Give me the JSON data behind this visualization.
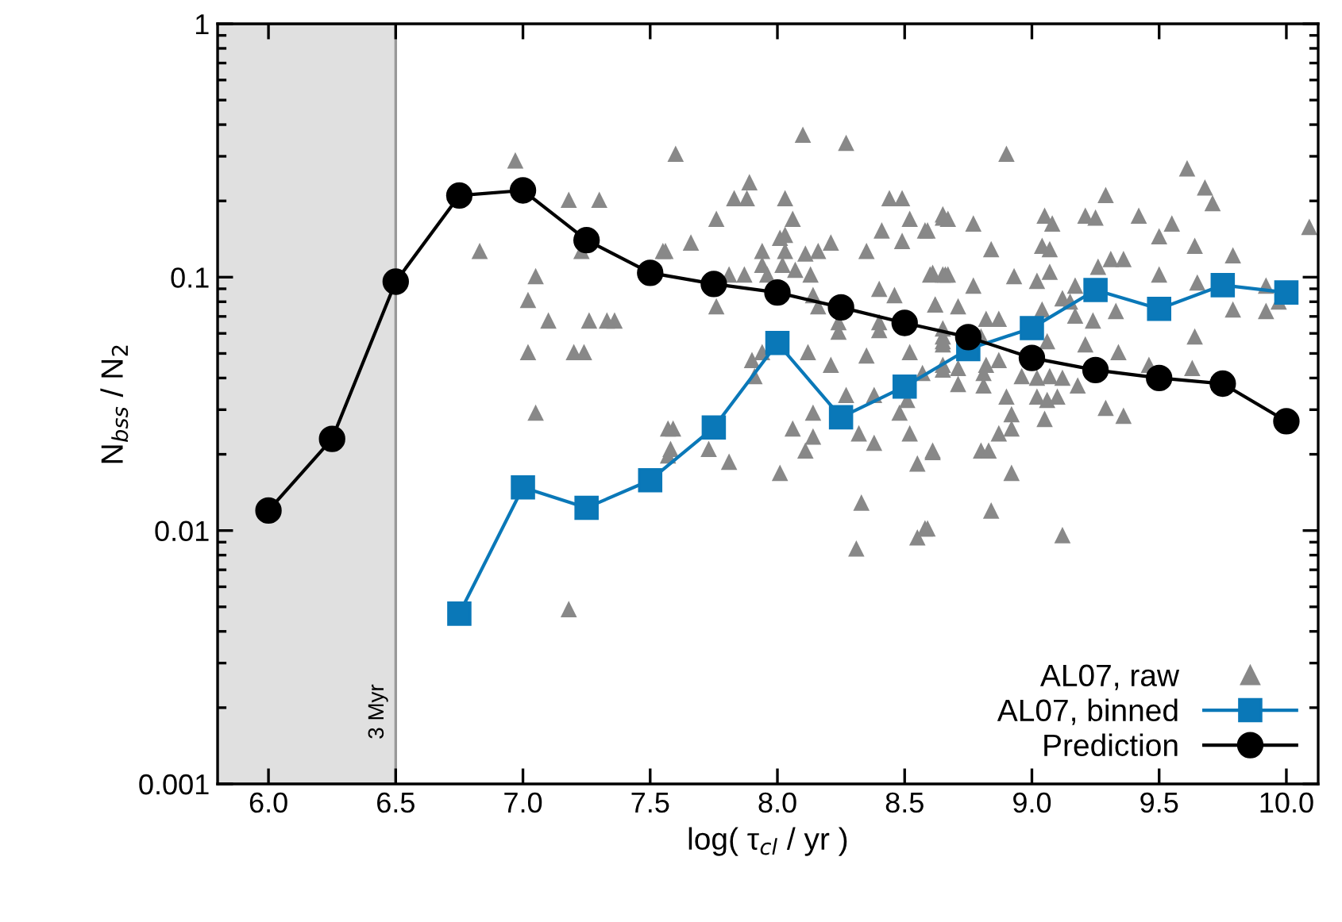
{
  "chart_data": {
    "type": "scatter",
    "xlabel": "log( τ$_{cl}$ / yr )",
    "ylabel": "N$_{bss}$ / N$_{2}$",
    "log": "y",
    "xlim": [
      5.8,
      10.125
    ],
    "ylim": [
      0.001,
      1
    ],
    "xticks": [
      {
        "value": 6,
        "label": "6.0"
      },
      {
        "value": 6.5,
        "label": "6.5"
      },
      {
        "value": 7,
        "label": "7.0"
      },
      {
        "value": 7.5,
        "label": "7.5"
      },
      {
        "value": 8,
        "label": "8.0"
      },
      {
        "value": 8.5,
        "label": "8.5"
      },
      {
        "value": 9,
        "label": "9.0"
      },
      {
        "value": 9.5,
        "label": "9.5"
      },
      {
        "value": 10,
        "label": "10.0"
      }
    ],
    "yticks": [
      0.001,
      0.01,
      0.1,
      1
    ],
    "grid": false,
    "legend": "bottom right",
    "bands": [
      {
        "axis": "x",
        "from": 5.8,
        "to": 6.5,
        "label": "3 Myr",
        "color": "#e0e0e0"
      }
    ],
    "series": [
      {
        "name": "AL07, raw",
        "marker": "triangle",
        "color": "#888888",
        "x": [
          6.97,
          6.83,
          7.18,
          7.3,
          7.23,
          7.55,
          7.05,
          7.02,
          7.1,
          7.26,
          7.33,
          7.36,
          7.02,
          7.2,
          7.24,
          7.05,
          7.18,
          7.57,
          7.57,
          8.1,
          8.27,
          7.6,
          7.89,
          7.83,
          7.88,
          8.03,
          8.44,
          8.49,
          7.76,
          8.06,
          8.52,
          8.41,
          8.58,
          8.65,
          7.66,
          7.56,
          8.03,
          8.01,
          7.94,
          8.03,
          8.11,
          8.16,
          8.21,
          8.35,
          8.49,
          7.94,
          8.02,
          8.07,
          7.81,
          7.87,
          7.96,
          8.13,
          8.6,
          8.66,
          7.76,
          8.4,
          8.46,
          8.14,
          8.16,
          8.62,
          8.24,
          8.4,
          8.24,
          8.4,
          8.65,
          8.65,
          7.9,
          7.94,
          7.91,
          8.12,
          8.21,
          8.35,
          8.52,
          8.65,
          8.57,
          8.27,
          8.38,
          8.51,
          8.48,
          7.59,
          8.06,
          8.14,
          8.14,
          8.32,
          8.38,
          8.52,
          7.58,
          7.73,
          8.11,
          7.81,
          8.55,
          8.61,
          8.01,
          8.33,
          8.58,
          8.55,
          8.31,
          8.9,
          9.61,
          9.68,
          9.71,
          9.29,
          8.65,
          8.67,
          8.77,
          8.59,
          9.05,
          9.08,
          9.21,
          9.25,
          9.42,
          9.55,
          9.5,
          10.09,
          8.84,
          9.04,
          9.07,
          9.64,
          9.79,
          9.26,
          9.31,
          9.36,
          8.61,
          8.65,
          8.67,
          8.93,
          9.07,
          9.02,
          8.77,
          9.17,
          9.5,
          9.65,
          9.92,
          9.12,
          9.15,
          8.62,
          8.71,
          9.33,
          9.79,
          9.92,
          9.97,
          8.82,
          8.87,
          9.04,
          9.17,
          9.24,
          8.65,
          8.65,
          8.8,
          9.06,
          9.64,
          9.21,
          9.34,
          8.71,
          8.82,
          8.87,
          8.65,
          8.81,
          8.81,
          8.71,
          8.96,
          9.02,
          9.07,
          9.12,
          9.18,
          9.46,
          9.63,
          9.02,
          9.06,
          9.1,
          8.9,
          8.92,
          9.05,
          9.29,
          9.36,
          8.87,
          8.92,
          8.61,
          8.8,
          8.83,
          8.92,
          8.84,
          8.59,
          9.12
        ],
        "values": [
          0.289,
          0.127,
          0.202,
          0.202,
          0.127,
          0.127,
          0.101,
          0.0813,
          0.0675,
          0.0675,
          0.0675,
          0.0675,
          0.0506,
          0.0506,
          0.0506,
          0.0292,
          0.0049,
          0.0253,
          0.0198,
          0.365,
          0.339,
          0.307,
          0.237,
          0.205,
          0.205,
          0.205,
          0.205,
          0.205,
          0.17,
          0.17,
          0.17,
          0.153,
          0.153,
          0.177,
          0.137,
          0.127,
          0.147,
          0.143,
          0.127,
          0.127,
          0.124,
          0.127,
          0.137,
          0.127,
          0.139,
          0.112,
          0.112,
          0.107,
          0.1025,
          0.1025,
          0.1025,
          0.1025,
          0.1025,
          0.1025,
          0.0768,
          0.09,
          0.085,
          0.085,
          0.0768,
          0.078,
          0.0665,
          0.0665,
          0.061,
          0.0619,
          0.0584,
          0.0543,
          0.0471,
          0.0506,
          0.0407,
          0.0506,
          0.0451,
          0.0491,
          0.0506,
          0.0451,
          0.0419,
          0.0343,
          0.0343,
          0.0328,
          0.0292,
          0.0253,
          0.0253,
          0.0292,
          0.0235,
          0.0242,
          0.0222,
          0.0242,
          0.021,
          0.021,
          0.0207,
          0.0187,
          0.0184,
          0.0207,
          0.0169,
          0.0129,
          0.0102,
          0.0094,
          0.0085,
          0.307,
          0.269,
          0.226,
          0.196,
          0.211,
          0.172,
          0.17,
          0.163,
          0.153,
          0.175,
          0.163,
          0.175,
          0.172,
          0.175,
          0.163,
          0.145,
          0.158,
          0.129,
          0.133,
          0.129,
          0.133,
          0.122,
          0.11,
          0.118,
          0.118,
          0.104,
          0.1025,
          0.1025,
          0.101,
          0.105,
          0.0968,
          0.0927,
          0.0927,
          0.1025,
          0.0953,
          0.0927,
          0.0826,
          0.0802,
          0.078,
          0.0768,
          0.0736,
          0.0746,
          0.0736,
          0.0802,
          0.0685,
          0.0685,
          0.0746,
          0.0705,
          0.0675,
          0.0628,
          0.0559,
          0.0584,
          0.0559,
          0.0584,
          0.0543,
          0.0506,
          0.0438,
          0.0451,
          0.0471,
          0.0432,
          0.0419,
          0.0374,
          0.0379,
          0.0407,
          0.0401,
          0.0407,
          0.0401,
          0.0374,
          0.0451,
          0.0438,
          0.0338,
          0.0328,
          0.0338,
          0.0338,
          0.0288,
          0.0276,
          0.0305,
          0.0284,
          0.0242,
          0.0253,
          0.0204,
          0.0207,
          0.0207,
          0.0169,
          0.012,
          0.0102,
          0.0096
        ]
      },
      {
        "name": "AL07, binned",
        "type": "line",
        "marker": "square",
        "line_style": "solid",
        "color": "#0a78b8",
        "x": [
          6.75,
          7.0,
          7.25,
          7.5,
          7.75,
          8.0,
          8.25,
          8.5,
          8.75,
          9.0,
          9.25,
          9.5,
          9.75,
          10.0
        ],
        "values": [
          0.0047,
          0.0148,
          0.0123,
          0.0158,
          0.0255,
          0.055,
          0.028,
          0.037,
          0.052,
          0.063,
          0.089,
          0.075,
          0.093,
          0.087
        ]
      },
      {
        "name": "Prediction",
        "type": "line",
        "marker": "circle",
        "line_style": "solid",
        "color": "#000000",
        "x": [
          6.0,
          6.25,
          6.5,
          6.75,
          7.0,
          7.25,
          7.5,
          7.75,
          8.0,
          8.25,
          8.5,
          8.75,
          9.0,
          9.25,
          9.5,
          9.75,
          10.0
        ],
        "values": [
          0.012,
          0.023,
          0.096,
          0.21,
          0.22,
          0.14,
          0.104,
          0.094,
          0.087,
          0.076,
          0.066,
          0.058,
          0.048,
          0.043,
          0.04,
          0.038,
          0.027
        ]
      }
    ]
  }
}
